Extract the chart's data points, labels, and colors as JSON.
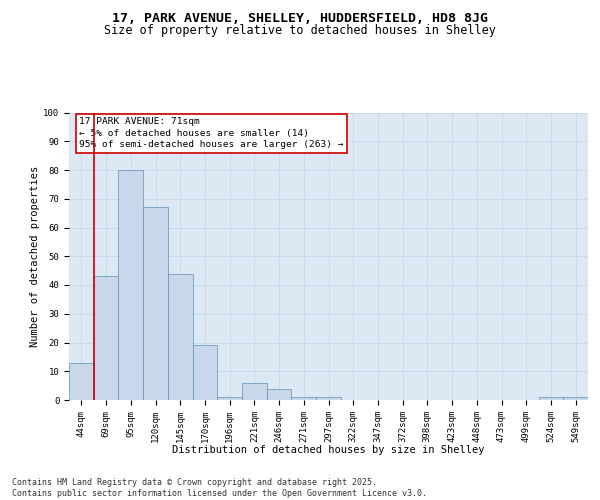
{
  "title1": "17, PARK AVENUE, SHELLEY, HUDDERSFIELD, HD8 8JG",
  "title2": "Size of property relative to detached houses in Shelley",
  "xlabel": "Distribution of detached houses by size in Shelley",
  "ylabel": "Number of detached properties",
  "categories": [
    "44sqm",
    "69sqm",
    "95sqm",
    "120sqm",
    "145sqm",
    "170sqm",
    "196sqm",
    "221sqm",
    "246sqm",
    "271sqm",
    "297sqm",
    "322sqm",
    "347sqm",
    "372sqm",
    "398sqm",
    "423sqm",
    "448sqm",
    "473sqm",
    "499sqm",
    "524sqm",
    "549sqm"
  ],
  "values": [
    13,
    43,
    80,
    67,
    44,
    19,
    1,
    6,
    4,
    1,
    1,
    0,
    0,
    0,
    0,
    0,
    0,
    0,
    0,
    1,
    1
  ],
  "bar_color": "#c8d8ea",
  "bar_edge_color": "#6090b8",
  "annotation_text": "17 PARK AVENUE: 71sqm\n← 5% of detached houses are smaller (14)\n95% of semi-detached houses are larger (263) →",
  "annotation_facecolor": "#ffffff",
  "annotation_edgecolor": "#cc0000",
  "vline_color": "#cc0000",
  "vline_x": 0.5,
  "ylim": [
    0,
    100
  ],
  "yticks": [
    0,
    10,
    20,
    30,
    40,
    50,
    60,
    70,
    80,
    90,
    100
  ],
  "grid_color": "#c5d5e5",
  "bg_color": "#dce8f4",
  "footer": "Contains HM Land Registry data © Crown copyright and database right 2025.\nContains public sector information licensed under the Open Government Licence v3.0.",
  "title1_fontsize": 9.5,
  "title2_fontsize": 8.5,
  "axis_label_fontsize": 7.5,
  "tick_fontsize": 6.5,
  "annotation_fontsize": 6.8,
  "footer_fontsize": 6.0
}
